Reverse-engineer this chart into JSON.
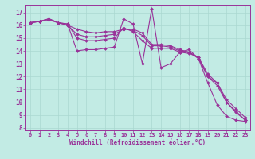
{
  "xlabel": "Windchill (Refroidissement éolien,°C)",
  "background_color": "#c2ebe4",
  "line_color": "#993399",
  "grid_color": "#aad8d0",
  "xlim": [
    -0.5,
    23.5
  ],
  "ylim": [
    7.8,
    17.6
  ],
  "yticks": [
    8,
    9,
    10,
    11,
    12,
    13,
    14,
    15,
    16,
    17
  ],
  "xticks": [
    0,
    1,
    2,
    3,
    4,
    5,
    6,
    7,
    8,
    9,
    10,
    11,
    12,
    13,
    14,
    15,
    16,
    17,
    18,
    19,
    20,
    21,
    22,
    23
  ],
  "lines": [
    {
      "x": [
        0,
        1,
        2,
        3,
        4,
        5,
        6,
        7,
        8,
        9,
        10,
        11,
        12,
        13,
        14,
        15,
        16,
        17,
        18,
        19,
        20,
        21,
        22,
        23
      ],
      "y": [
        16.2,
        16.3,
        16.5,
        16.2,
        16.1,
        14.0,
        14.1,
        14.1,
        14.2,
        14.3,
        16.5,
        16.1,
        13.0,
        17.3,
        12.7,
        13.0,
        13.9,
        14.1,
        13.4,
        11.5,
        9.8,
        8.9,
        8.6,
        8.5
      ]
    },
    {
      "x": [
        0,
        1,
        2,
        3,
        4,
        5,
        6,
        7,
        8,
        9,
        10,
        11,
        12,
        13,
        14,
        15,
        16,
        17,
        18,
        19,
        20,
        21,
        22,
        23
      ],
      "y": [
        16.2,
        16.3,
        16.5,
        16.2,
        16.1,
        15.0,
        14.8,
        14.8,
        14.9,
        15.0,
        15.8,
        15.5,
        14.8,
        14.2,
        14.2,
        14.2,
        13.9,
        13.8,
        13.5,
        12.2,
        11.5,
        10.0,
        9.3,
        8.6
      ]
    },
    {
      "x": [
        0,
        1,
        2,
        3,
        4,
        5,
        6,
        7,
        8,
        9,
        10,
        11,
        12,
        13,
        14,
        15,
        16,
        17,
        18,
        19,
        20,
        21,
        22,
        23
      ],
      "y": [
        16.2,
        16.3,
        16.4,
        16.2,
        16.0,
        15.3,
        15.1,
        15.1,
        15.2,
        15.3,
        15.7,
        15.6,
        15.2,
        14.4,
        14.4,
        14.3,
        14.0,
        13.9,
        13.5,
        12.0,
        11.3,
        10.0,
        9.2,
        8.6
      ]
    },
    {
      "x": [
        0,
        1,
        2,
        3,
        4,
        5,
        6,
        7,
        8,
        9,
        10,
        11,
        12,
        13,
        14,
        15,
        16,
        17,
        18,
        19,
        20,
        21,
        22,
        23
      ],
      "y": [
        16.2,
        16.3,
        16.5,
        16.2,
        16.0,
        15.7,
        15.5,
        15.4,
        15.5,
        15.5,
        15.7,
        15.7,
        15.4,
        14.5,
        14.5,
        14.4,
        14.1,
        13.9,
        13.4,
        12.0,
        11.5,
        10.2,
        9.5,
        8.8
      ]
    }
  ]
}
